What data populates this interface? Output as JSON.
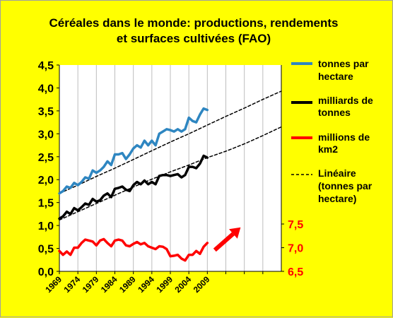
{
  "chart_data": {
    "type": "line",
    "title_lines": [
      "Céréales dans le monde: productions, rendements",
      "et surfaces cultivées (FAO)"
    ],
    "x_range": [
      1969,
      2029
    ],
    "x_tick_labels": [
      "1969",
      "1974",
      "1979",
      "1984",
      "1989",
      "1994",
      "1999",
      "2004",
      "2009"
    ],
    "y_range": [
      0,
      4.5
    ],
    "y_tick_labels": [
      "0,0",
      "0,5",
      "1,0",
      "1,5",
      "2,0",
      "2,5",
      "3,0",
      "3,5",
      "4,0",
      "4,5"
    ],
    "y2_range": [
      6.5,
      7.5
    ],
    "y2_tick_labels": [
      "6,5",
      "7,0",
      "7,5"
    ],
    "grid": {
      "vertical": true,
      "horizontal": false
    },
    "legend_placement": "right",
    "series": [
      {
        "name": "tonnes par hectare",
        "color": "#2e86c1",
        "axis": "left",
        "x": [
          1969,
          1970,
          1971,
          1972,
          1973,
          1974,
          1975,
          1976,
          1977,
          1978,
          1979,
          1980,
          1981,
          1982,
          1983,
          1984,
          1985,
          1986,
          1987,
          1988,
          1989,
          1990,
          1991,
          1992,
          1993,
          1994,
          1995,
          1996,
          1997,
          1998,
          1999,
          2000,
          2001,
          2002,
          2003,
          2004,
          2005,
          2006,
          2007,
          2008,
          2009
        ],
        "y": [
          1.7,
          1.75,
          1.85,
          1.82,
          1.93,
          1.88,
          1.95,
          2.05,
          2.02,
          2.2,
          2.15,
          2.2,
          2.28,
          2.4,
          2.32,
          2.55,
          2.55,
          2.58,
          2.45,
          2.55,
          2.68,
          2.75,
          2.7,
          2.85,
          2.75,
          2.85,
          2.75,
          3.0,
          3.05,
          3.1,
          3.08,
          3.05,
          3.1,
          3.05,
          3.1,
          3.35,
          3.28,
          3.25,
          3.42,
          3.55,
          3.52
        ]
      },
      {
        "name": "milliards de tonnes",
        "color": "#000000",
        "axis": "left",
        "x": [
          1969,
          1970,
          1971,
          1972,
          1973,
          1974,
          1975,
          1976,
          1977,
          1978,
          1979,
          1980,
          1981,
          1982,
          1983,
          1984,
          1985,
          1986,
          1987,
          1988,
          1989,
          1990,
          1991,
          1992,
          1993,
          1994,
          1995,
          1996,
          1997,
          1998,
          1999,
          2000,
          2001,
          2002,
          2003,
          2004,
          2005,
          2006,
          2007,
          2008,
          2009
        ],
        "y": [
          1.15,
          1.2,
          1.3,
          1.25,
          1.38,
          1.33,
          1.4,
          1.48,
          1.45,
          1.58,
          1.52,
          1.55,
          1.65,
          1.7,
          1.62,
          1.8,
          1.82,
          1.85,
          1.78,
          1.75,
          1.88,
          1.95,
          1.9,
          1.98,
          1.9,
          1.95,
          1.9,
          2.08,
          2.1,
          2.1,
          2.08,
          2.1,
          2.12,
          2.05,
          2.1,
          2.28,
          2.28,
          2.25,
          2.35,
          2.52,
          2.48
        ]
      },
      {
        "name": "millions de km2",
        "color": "#ff0000",
        "axis": "right",
        "x": [
          1969,
          1970,
          1971,
          1972,
          1973,
          1974,
          1975,
          1976,
          1977,
          1978,
          1979,
          1980,
          1981,
          1982,
          1983,
          1984,
          1985,
          1986,
          1987,
          1988,
          1989,
          1990,
          1991,
          1992,
          1993,
          1994,
          1995,
          1996,
          1997,
          1998,
          1999,
          2000,
          2001,
          2002,
          2003,
          2004,
          2005,
          2006,
          2007,
          2008,
          2009
        ],
        "y": [
          6.93,
          6.85,
          6.92,
          6.85,
          7.0,
          7.0,
          7.1,
          7.17,
          7.15,
          7.13,
          7.05,
          7.15,
          7.18,
          7.1,
          7.03,
          7.15,
          7.17,
          7.15,
          7.05,
          7.03,
          7.08,
          7.12,
          7.07,
          7.1,
          7.03,
          7.0,
          6.97,
          7.03,
          7.02,
          6.97,
          6.82,
          6.83,
          6.85,
          6.77,
          6.73,
          6.85,
          6.85,
          6.93,
          6.87,
          7.02,
          7.1
        ]
      },
      {
        "name": "Linéaire (tonnes par hectare)",
        "color": "#000000",
        "style": "dashed",
        "axis": "left",
        "x": [
          1969,
          1974,
          1979,
          1984,
          1989,
          1994,
          1999,
          2004,
          2009,
          2014,
          2019,
          2024,
          2029
        ],
        "y": [
          1.7,
          1.88,
          2.07,
          2.25,
          2.44,
          2.63,
          2.82,
          3.0,
          3.19,
          3.38,
          3.56,
          3.75,
          3.93
        ]
      }
    ],
    "unlabeled_marks": [
      {
        "name": "trend-production",
        "color": "#000000",
        "style": "dashed",
        "axis": "left",
        "x": [
          1969,
          1974,
          1979,
          1984,
          1989,
          1994,
          1999,
          2004,
          2009,
          2014,
          2019,
          2024,
          2029
        ],
        "y": [
          1.12,
          1.3,
          1.48,
          1.66,
          1.84,
          2.01,
          2.17,
          2.32,
          2.48,
          2.62,
          2.78,
          2.96,
          3.15
        ]
      }
    ],
    "arrow": {
      "color": "#ff0000",
      "from": [
        2011,
        6.95
      ],
      "to": [
        2018,
        7.43
      ],
      "axis": "right"
    }
  }
}
